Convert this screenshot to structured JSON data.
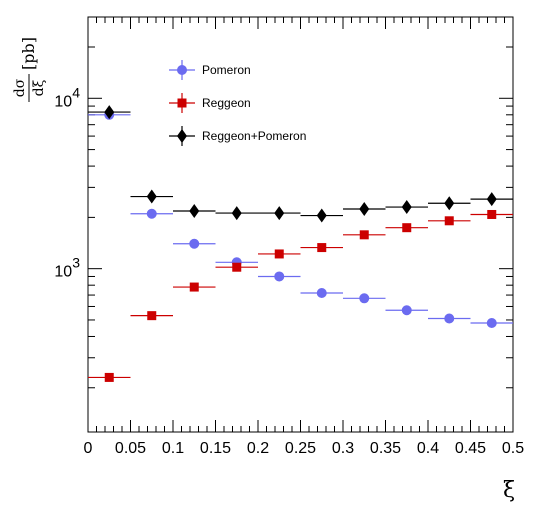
{
  "chart_data": {
    "type": "scatter",
    "xlabel": "ξ",
    "ylabel": {
      "numerator": "dσ",
      "denominator": "dξ",
      "unit": "[pb]"
    },
    "xlim": [
      0,
      0.5
    ],
    "ylim": [
      110,
      30000
    ],
    "y_scale": "log",
    "grid": false,
    "legend_position": "top-left",
    "x_ticks": [
      "0",
      "0.05",
      "0.1",
      "0.15",
      "0.2",
      "0.25",
      "0.3",
      "0.35",
      "0.4",
      "0.45",
      "0.5"
    ],
    "y_ticks": [
      {
        "value": 1000,
        "base": "10",
        "exp": "3"
      },
      {
        "value": 10000,
        "base": "10",
        "exp": "4"
      }
    ],
    "x_bin_half_width": 0.025,
    "series": [
      {
        "name": "Pomeron",
        "color": "#6b6bf0",
        "marker": "circle",
        "x": [
          0.025,
          0.075,
          0.125,
          0.175,
          0.225,
          0.275,
          0.325,
          0.375,
          0.425,
          0.475
        ],
        "y": [
          8000,
          2100,
          1400,
          1090,
          900,
          720,
          670,
          570,
          510,
          480
        ]
      },
      {
        "name": "Reggeon",
        "color": "#cc0000",
        "marker": "square",
        "x": [
          0.025,
          0.075,
          0.125,
          0.175,
          0.225,
          0.275,
          0.325,
          0.375,
          0.425,
          0.475
        ],
        "y": [
          230,
          530,
          780,
          1020,
          1220,
          1330,
          1580,
          1740,
          1910,
          2080
        ]
      },
      {
        "name": "Reggeon+Pomeron",
        "color": "#000000",
        "marker": "diamond",
        "x": [
          0.025,
          0.075,
          0.125,
          0.175,
          0.225,
          0.275,
          0.325,
          0.375,
          0.425,
          0.475
        ],
        "y": [
          8300,
          2650,
          2180,
          2120,
          2120,
          2050,
          2240,
          2300,
          2420,
          2560
        ]
      }
    ]
  }
}
